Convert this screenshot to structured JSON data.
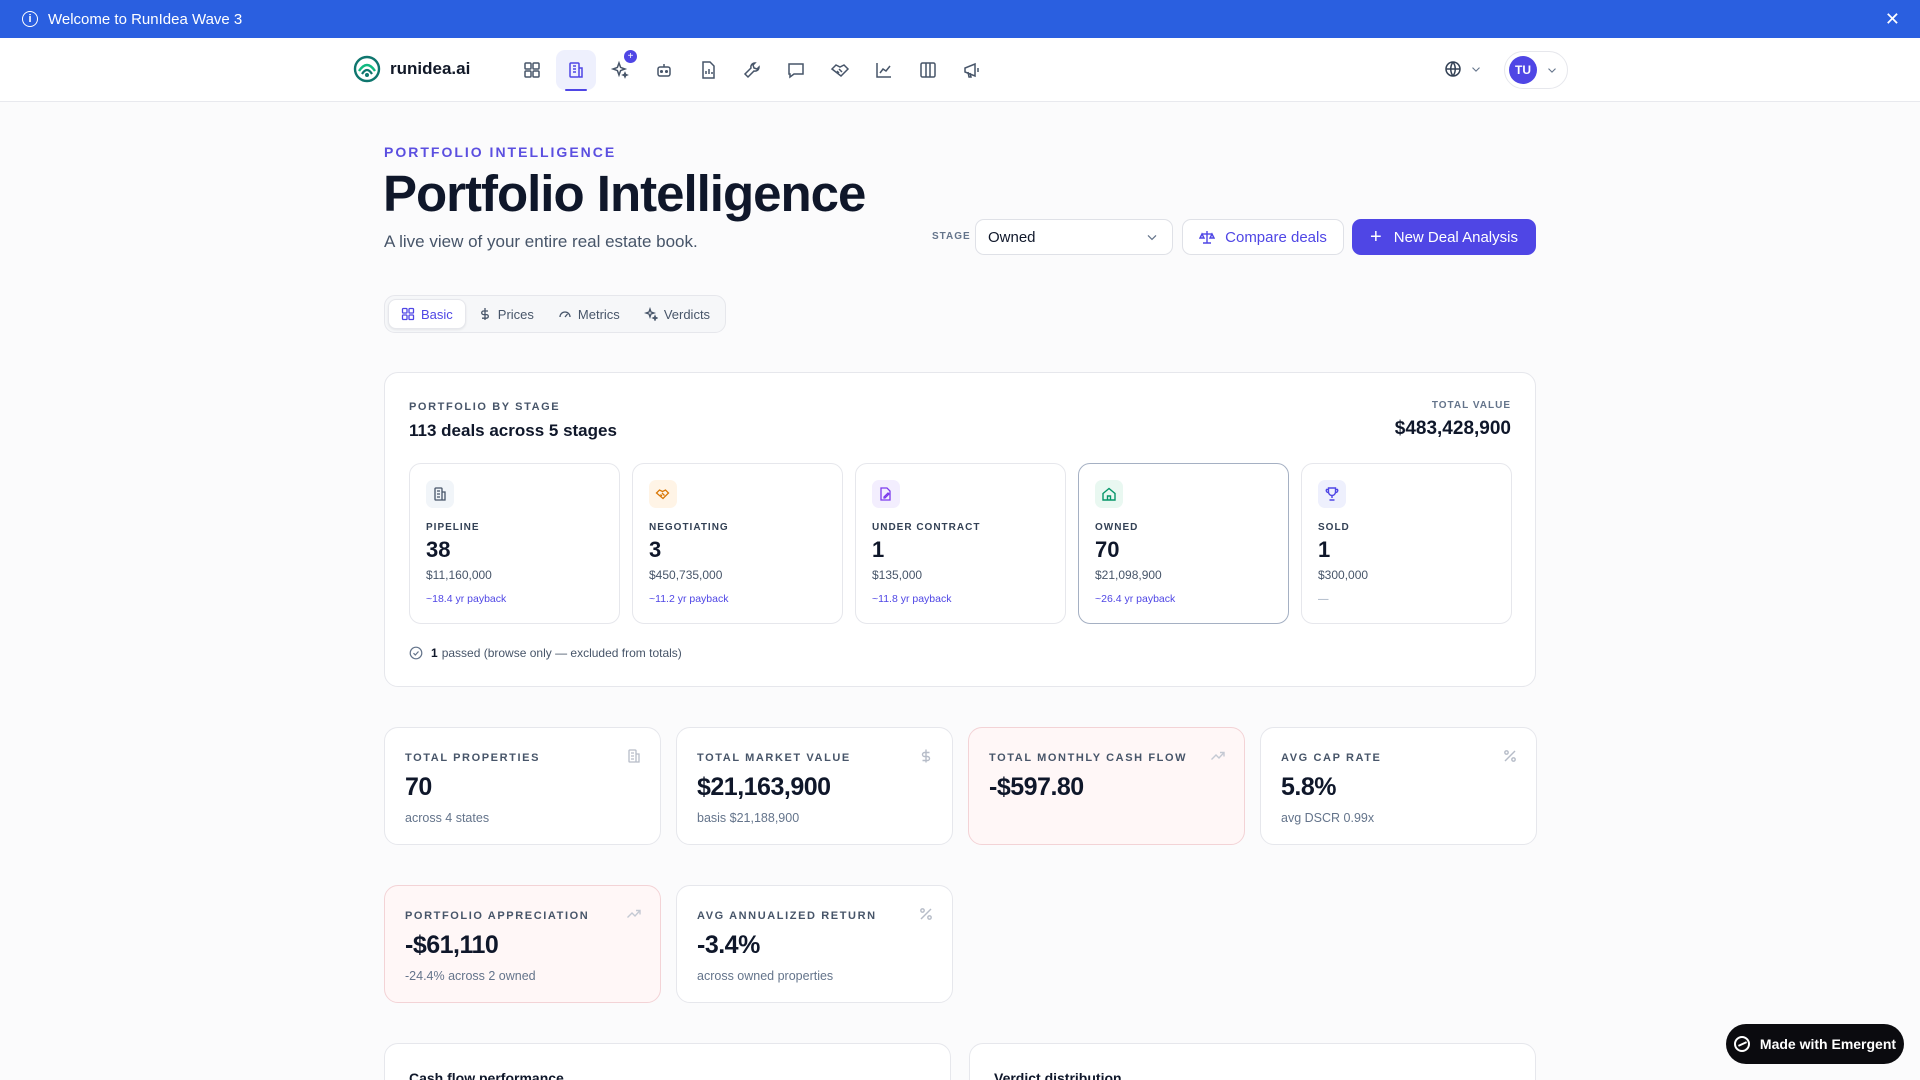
{
  "banner": {
    "text": "Welcome to RunIdea Wave 3"
  },
  "brand": {
    "name": "runidea.ai"
  },
  "nav": {
    "items": [
      {
        "name": "dashboard-icon"
      },
      {
        "name": "portfolio-icon",
        "active": true
      },
      {
        "name": "sparkles-icon",
        "badge": "+"
      },
      {
        "name": "bot-icon"
      },
      {
        "name": "report-icon"
      },
      {
        "name": "wrench-icon"
      },
      {
        "name": "chat-icon"
      },
      {
        "name": "handshake-icon"
      },
      {
        "name": "chart-line-icon"
      },
      {
        "name": "columns-icon"
      },
      {
        "name": "megaphone-icon"
      }
    ],
    "user_initials": "TU"
  },
  "header": {
    "eyebrow": "PORTFOLIO INTELLIGENCE",
    "title": "Portfolio Intelligence",
    "subtitle": "A live view of your entire real estate book.",
    "stage_label": "STAGE",
    "stage_value": "Owned",
    "compare_label": "Compare deals",
    "new_deal_label": "New Deal Analysis"
  },
  "tabs": [
    {
      "label": "Basic",
      "icon": "grid-icon",
      "active": true
    },
    {
      "label": "Prices",
      "icon": "dollar-icon"
    },
    {
      "label": "Metrics",
      "icon": "gauge-icon"
    },
    {
      "label": "Verdicts",
      "icon": "sparkles-icon"
    }
  ],
  "portfolio": {
    "eyebrow": "PORTFOLIO BY STAGE",
    "title": "113 deals across 5 stages",
    "total_value_label": "TOTAL VALUE",
    "total_value": "$483,428,900",
    "stages": [
      {
        "label": "PIPELINE",
        "count": "38",
        "value": "$11,160,000",
        "payback": "~18.4 yr payback",
        "icon": "building-icon",
        "tint": "#f1f5f9",
        "color": "#475569"
      },
      {
        "label": "NEGOTIATING",
        "count": "3",
        "value": "$450,735,000",
        "payback": "~11.2 yr payback",
        "icon": "handshake-icon",
        "tint": "#fff4e6",
        "color": "#d97706"
      },
      {
        "label": "UNDER CONTRACT",
        "count": "1",
        "value": "$135,000",
        "payback": "~11.8 yr payback",
        "icon": "contract-icon",
        "tint": "#f3eefe",
        "color": "#7c3aed"
      },
      {
        "label": "OWNED",
        "count": "70",
        "value": "$21,098,900",
        "payback": "~26.4 yr payback",
        "icon": "home-icon",
        "tint": "#e9f8f1",
        "color": "#059669",
        "active": true
      },
      {
        "label": "SOLD",
        "count": "1",
        "value": "$300,000",
        "payback": "—",
        "icon": "trophy-icon",
        "tint": "#eef0fd",
        "color": "#4f46e5"
      }
    ],
    "passed_count": "1",
    "passed_text": "passed (browse only — excluded from totals)"
  },
  "kpis": [
    {
      "label": "TOTAL PROPERTIES",
      "value": "70",
      "sub": "across 4 states",
      "icon": "building-icon"
    },
    {
      "label": "TOTAL MARKET VALUE",
      "value": "$21,163,900",
      "sub": "basis $21,188,900",
      "icon": "dollar-icon"
    },
    {
      "label": "TOTAL MONTHLY CASH FLOW",
      "value": "-$597.80",
      "sub": "",
      "icon": "trend-up-icon",
      "negative": true
    },
    {
      "label": "AVG CAP RATE",
      "value": "5.8%",
      "sub": "avg DSCR 0.99x",
      "icon": "percent-icon"
    },
    {
      "label": "PORTFOLIO APPRECIATION",
      "value": "-$61,110",
      "sub": "-24.4% across 2 owned",
      "icon": "trend-up-icon",
      "negative": true
    },
    {
      "label": "AVG ANNUALIZED RETURN",
      "value": "-3.4%",
      "sub": "across owned properties",
      "icon": "percent-icon"
    }
  ],
  "sections": {
    "cash_flow_title": "Cash flow performance",
    "verdict_title": "Verdict distribution"
  },
  "badge": {
    "label": "Made with Emergent"
  },
  "colors": {
    "accent": "#4f46e5",
    "banner": "#2a5fe0"
  }
}
